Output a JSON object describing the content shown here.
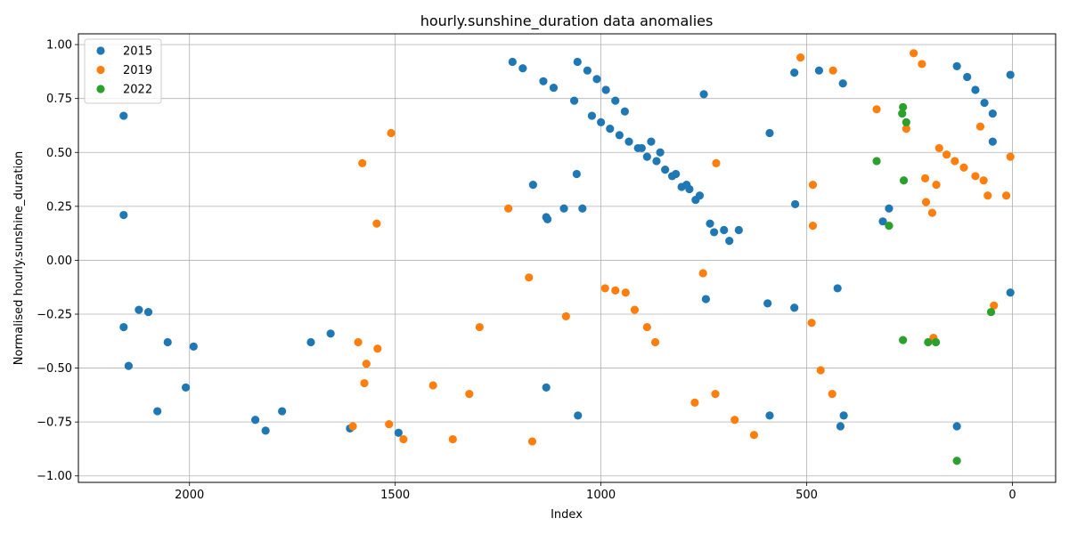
{
  "chart_data": {
    "type": "scatter",
    "title": "hourly.sunshine_duration data anomalies",
    "xlabel": "Index",
    "ylabel": "Normalised hourly.sunshine_duration",
    "xlim": [
      2270,
      -105
    ],
    "ylim": [
      -1.03,
      1.05
    ],
    "x_inverted": true,
    "xticks": [
      2000,
      1500,
      1000,
      500,
      0
    ],
    "yticks": [
      -1.0,
      -0.75,
      -0.5,
      -0.25,
      0.0,
      0.25,
      0.5,
      0.75,
      1.0
    ],
    "ytick_labels": [
      "−1.00",
      "−0.75",
      "−0.50",
      "−0.25",
      "0.00",
      "0.25",
      "0.50",
      "0.75",
      "1.00"
    ],
    "grid": true,
    "legend_position": "top-left",
    "series": [
      {
        "name": "2015",
        "color": "#1f77b4",
        "points": [
          [
            2160,
            0.67
          ],
          [
            2160,
            0.21
          ],
          [
            2160,
            -0.31
          ],
          [
            2148,
            -0.49
          ],
          [
            2123,
            -0.23
          ],
          [
            2100,
            -0.24
          ],
          [
            2078,
            -0.7
          ],
          [
            2053,
            -0.38
          ],
          [
            2009,
            -0.59
          ],
          [
            1990,
            -0.4
          ],
          [
            1840,
            -0.74
          ],
          [
            1815,
            -0.79
          ],
          [
            1775,
            -0.7
          ],
          [
            1705,
            -0.38
          ],
          [
            1657,
            -0.34
          ],
          [
            1610,
            -0.78
          ],
          [
            1492,
            -0.8
          ],
          [
            1215,
            0.92
          ],
          [
            1190,
            0.89
          ],
          [
            1165,
            0.35
          ],
          [
            1140,
            0.83
          ],
          [
            1133,
            0.2
          ],
          [
            1130,
            0.19
          ],
          [
            1133,
            -0.59
          ],
          [
            1115,
            0.8
          ],
          [
            1090,
            0.24
          ],
          [
            1065,
            0.74
          ],
          [
            1057,
            0.92
          ],
          [
            1059,
            0.4
          ],
          [
            1056,
            -0.72
          ],
          [
            1033,
            0.88
          ],
          [
            1045,
            0.24
          ],
          [
            1022,
            0.67
          ],
          [
            1010,
            0.84
          ],
          [
            1000,
            0.64
          ],
          [
            988,
            0.79
          ],
          [
            978,
            0.61
          ],
          [
            965,
            0.74
          ],
          [
            955,
            0.58
          ],
          [
            942,
            0.69
          ],
          [
            932,
            0.55
          ],
          [
            910,
            0.52
          ],
          [
            901,
            0.52
          ],
          [
            888,
            0.48
          ],
          [
            878,
            0.55
          ],
          [
            865,
            0.46
          ],
          [
            856,
            0.5
          ],
          [
            844,
            0.42
          ],
          [
            827,
            0.39
          ],
          [
            818,
            0.4
          ],
          [
            804,
            0.34
          ],
          [
            792,
            0.35
          ],
          [
            785,
            0.33
          ],
          [
            770,
            0.28
          ],
          [
            760,
            0.3
          ],
          [
            750,
            0.77
          ],
          [
            745,
            -0.18
          ],
          [
            735,
            0.17
          ],
          [
            725,
            0.13
          ],
          [
            701,
            0.14
          ],
          [
            688,
            0.09
          ],
          [
            665,
            0.14
          ],
          [
            590,
            0.59
          ],
          [
            590,
            -0.72
          ],
          [
            595,
            -0.2
          ],
          [
            530,
            -0.22
          ],
          [
            530,
            0.87
          ],
          [
            528,
            0.26
          ],
          [
            470,
            0.88
          ],
          [
            412,
            0.82
          ],
          [
            425,
            -0.13
          ],
          [
            418,
            -0.77
          ],
          [
            410,
            -0.72
          ],
          [
            315,
            0.18
          ],
          [
            300,
            0.24
          ],
          [
            135,
            0.9
          ],
          [
            110,
            0.85
          ],
          [
            90,
            0.79
          ],
          [
            68,
            0.73
          ],
          [
            48,
            0.68
          ],
          [
            48,
            0.55
          ],
          [
            5,
            0.86
          ],
          [
            5,
            -0.15
          ],
          [
            135,
            -0.77
          ]
        ]
      },
      {
        "name": "2019",
        "color": "#ff7f0e",
        "points": [
          [
            1603,
            -0.77
          ],
          [
            1590,
            -0.38
          ],
          [
            1575,
            -0.57
          ],
          [
            1570,
            -0.48
          ],
          [
            1545,
            0.17
          ],
          [
            1543,
            -0.41
          ],
          [
            1515,
            -0.76
          ],
          [
            1510,
            0.59
          ],
          [
            1480,
            -0.83
          ],
          [
            1580,
            0.45
          ],
          [
            1408,
            -0.58
          ],
          [
            1360,
            -0.83
          ],
          [
            1320,
            -0.62
          ],
          [
            1295,
            -0.31
          ],
          [
            1225,
            0.24
          ],
          [
            1175,
            -0.08
          ],
          [
            1167,
            -0.84
          ],
          [
            1085,
            -0.26
          ],
          [
            990,
            -0.13
          ],
          [
            965,
            -0.14
          ],
          [
            940,
            -0.15
          ],
          [
            918,
            -0.23
          ],
          [
            888,
            -0.31
          ],
          [
            868,
            -0.38
          ],
          [
            772,
            -0.66
          ],
          [
            752,
            -0.06
          ],
          [
            722,
            -0.62
          ],
          [
            720,
            0.45
          ],
          [
            675,
            -0.74
          ],
          [
            628,
            -0.81
          ],
          [
            515,
            0.94
          ],
          [
            485,
            0.16
          ],
          [
            488,
            -0.29
          ],
          [
            485,
            0.35
          ],
          [
            466,
            -0.51
          ],
          [
            438,
            -0.62
          ],
          [
            436,
            0.88
          ],
          [
            330,
            0.7
          ],
          [
            258,
            0.61
          ],
          [
            240,
            0.96
          ],
          [
            220,
            0.91
          ],
          [
            212,
            0.38
          ],
          [
            210,
            0.27
          ],
          [
            195,
            0.22
          ],
          [
            185,
            0.35
          ],
          [
            178,
            0.52
          ],
          [
            160,
            0.49
          ],
          [
            140,
            0.46
          ],
          [
            118,
            0.43
          ],
          [
            90,
            0.39
          ],
          [
            78,
            0.62
          ],
          [
            70,
            0.37
          ],
          [
            60,
            0.3
          ],
          [
            45,
            -0.21
          ],
          [
            15,
            0.3
          ],
          [
            5,
            0.48
          ],
          [
            192,
            -0.36
          ]
        ]
      },
      {
        "name": "2022",
        "color": "#2ca02c",
        "points": [
          [
            330,
            0.46
          ],
          [
            300,
            0.16
          ],
          [
            268,
            0.68
          ],
          [
            266,
            0.71
          ],
          [
            264,
            0.37
          ],
          [
            266,
            -0.37
          ],
          [
            258,
            0.64
          ],
          [
            205,
            -0.38
          ],
          [
            186,
            -0.38
          ],
          [
            135,
            -0.93
          ],
          [
            52,
            -0.24
          ]
        ]
      }
    ]
  }
}
